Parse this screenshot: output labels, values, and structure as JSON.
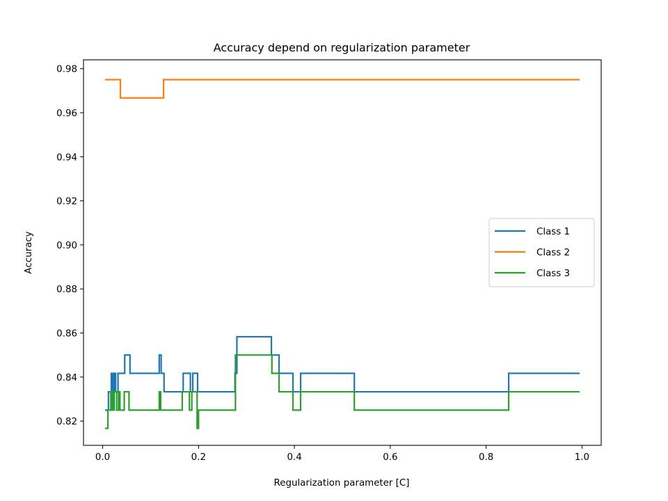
{
  "chart_data": {
    "type": "line",
    "title": "Accuracy depend on regularization parameter",
    "xlabel": "Regularization parameter [C]",
    "ylabel": "Accuracy",
    "xlim": [
      -0.04,
      1.04
    ],
    "ylim": [
      0.809,
      0.984
    ],
    "xticks": [
      0.0,
      0.2,
      0.4,
      0.6,
      0.8,
      1.0
    ],
    "xtick_labels": [
      "0.0",
      "0.2",
      "0.4",
      "0.6",
      "0.8",
      "1.0"
    ],
    "yticks": [
      0.82,
      0.84,
      0.86,
      0.88,
      0.9,
      0.92,
      0.94,
      0.96,
      0.98
    ],
    "ytick_labels": [
      "0.82",
      "0.84",
      "0.86",
      "0.88",
      "0.90",
      "0.92",
      "0.94",
      "0.96",
      "0.98"
    ],
    "grid": false,
    "legend_position": "center-right",
    "step": "post",
    "series": [
      {
        "name": "Class 1",
        "color": "#1f77b4",
        "points": [
          [
            0.005,
            0.825
          ],
          [
            0.012,
            0.8333
          ],
          [
            0.018,
            0.8417
          ],
          [
            0.021,
            0.825
          ],
          [
            0.024,
            0.8417
          ],
          [
            0.027,
            0.8333
          ],
          [
            0.032,
            0.8417
          ],
          [
            0.046,
            0.85
          ],
          [
            0.057,
            0.8417
          ],
          [
            0.118,
            0.85
          ],
          [
            0.122,
            0.8417
          ],
          [
            0.128,
            0.8333
          ],
          [
            0.168,
            0.8417
          ],
          [
            0.183,
            0.8333
          ],
          [
            0.188,
            0.8417
          ],
          [
            0.198,
            0.8333
          ],
          [
            0.276,
            0.8417
          ],
          [
            0.28,
            0.8583
          ],
          [
            0.352,
            0.85
          ],
          [
            0.368,
            0.8417
          ],
          [
            0.397,
            0.8333
          ],
          [
            0.413,
            0.8417
          ],
          [
            0.525,
            0.8333
          ],
          [
            0.847,
            0.8417
          ],
          [
            0.995,
            0.8417
          ]
        ]
      },
      {
        "name": "Class 2",
        "color": "#ff7f0e",
        "points": [
          [
            0.005,
            0.975
          ],
          [
            0.037,
            0.9667
          ],
          [
            0.127,
            0.975
          ],
          [
            0.995,
            0.975
          ]
        ]
      },
      {
        "name": "Class 3",
        "color": "#2ca02c",
        "points": [
          [
            0.005,
            0.8167
          ],
          [
            0.011,
            0.825
          ],
          [
            0.017,
            0.8333
          ],
          [
            0.02,
            0.825
          ],
          [
            0.023,
            0.8333
          ],
          [
            0.029,
            0.825
          ],
          [
            0.033,
            0.8333
          ],
          [
            0.036,
            0.825
          ],
          [
            0.045,
            0.8333
          ],
          [
            0.055,
            0.825
          ],
          [
            0.118,
            0.8333
          ],
          [
            0.121,
            0.825
          ],
          [
            0.166,
            0.8333
          ],
          [
            0.181,
            0.825
          ],
          [
            0.186,
            0.8333
          ],
          [
            0.197,
            0.8167
          ],
          [
            0.2,
            0.825
          ],
          [
            0.277,
            0.85
          ],
          [
            0.353,
            0.8417
          ],
          [
            0.368,
            0.8333
          ],
          [
            0.397,
            0.825
          ],
          [
            0.413,
            0.8333
          ],
          [
            0.525,
            0.825
          ],
          [
            0.847,
            0.8333
          ],
          [
            0.995,
            0.8333
          ]
        ]
      }
    ]
  }
}
